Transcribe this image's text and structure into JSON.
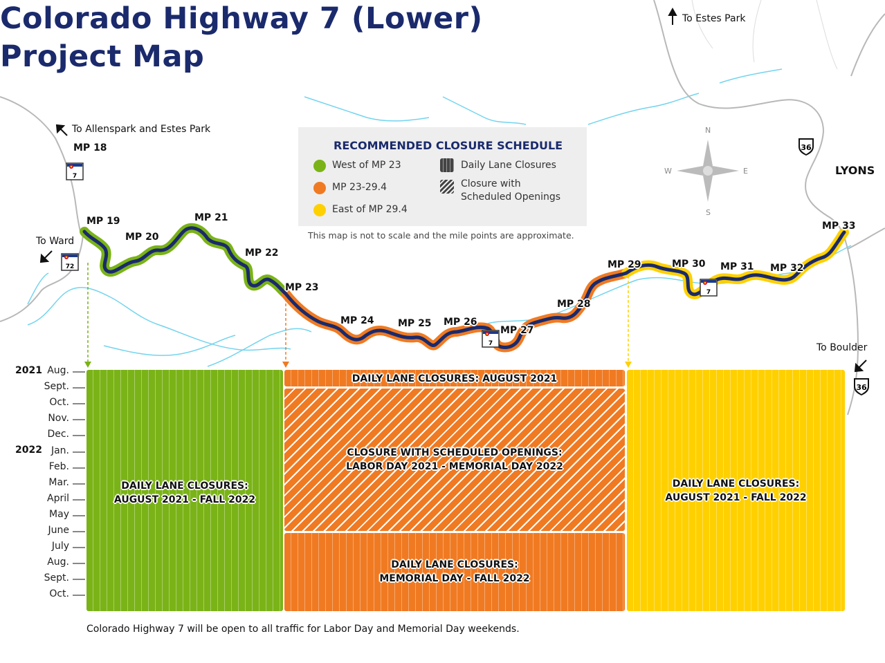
{
  "title": {
    "line1": "Colorado Highway 7 (Lower)",
    "line2": "Project Map"
  },
  "colors": {
    "title": "#1a2a6c",
    "highway": "#1a2a6c",
    "green": "#7ab317",
    "orange": "#f07a22",
    "yellow": "#ffd000",
    "water": "#72d4ee",
    "road": "#b8b8b8"
  },
  "directions": {
    "estes": "To Estes Park",
    "allenspark": "To Allenspark and Estes Park",
    "ward": "To Ward",
    "boulder": "To Boulder"
  },
  "towns": {
    "lyons": "LYONS"
  },
  "mile_points": {
    "mp18": "MP 18",
    "mp19": "MP 19",
    "mp20": "MP 20",
    "mp21": "MP 21",
    "mp22": "MP 22",
    "mp23": "MP 23",
    "mp24": "MP 24",
    "mp25": "MP 25",
    "mp26": "MP 26",
    "mp27": "MP 27",
    "mp28": "MP 28",
    "mp29": "MP 29",
    "mp30": "MP 30",
    "mp31": "MP 31",
    "mp32": "MP 32",
    "mp33": "MP 33"
  },
  "shields": {
    "co7": "7",
    "co72": "72",
    "us36": "36"
  },
  "compass": {
    "n": "N",
    "s": "S",
    "e": "E",
    "w": "W"
  },
  "legend": {
    "title": "RECOMMENDED CLOSURE SCHEDULE",
    "green": "West of MP 23",
    "orange": "MP 23-29.4",
    "yellow": "East of MP 29.4",
    "daily": "Daily Lane Closures",
    "closure_line1": "Closure with",
    "closure_line2": "Scheduled Openings"
  },
  "note": "This map is not to scale and the mile points are approximate.",
  "timeline": {
    "years": [
      "2021",
      "2022"
    ],
    "months": [
      "Aug.",
      "Sept.",
      "Oct.",
      "Nov.",
      "Dec.",
      "Jan.",
      "Feb.",
      "Mar.",
      "April",
      "May",
      "June",
      "July",
      "Aug.",
      "Sept.",
      "Oct."
    ]
  },
  "blocks": {
    "green_l1": "DAILY LANE CLOSURES:",
    "green_l2": "AUGUST 2021 - FALL 2022",
    "orange_top": "DAILY LANE CLOSURES: AUGUST 2021",
    "orange_mid_l1": "CLOSURE WITH SCHEDULED OPENINGS:",
    "orange_mid_l2": "LABOR DAY 2021 - MEMORIAL DAY 2022",
    "orange_bot_l1": "DAILY LANE CLOSURES:",
    "orange_bot_l2": "MEMORIAL DAY - FALL 2022",
    "yellow_l1": "DAILY LANE CLOSURES:",
    "yellow_l2": "AUGUST 2021 - FALL 2022"
  },
  "footer": "Colorado Highway 7 will be open to all traffic for Labor Day and Memorial Day weekends."
}
